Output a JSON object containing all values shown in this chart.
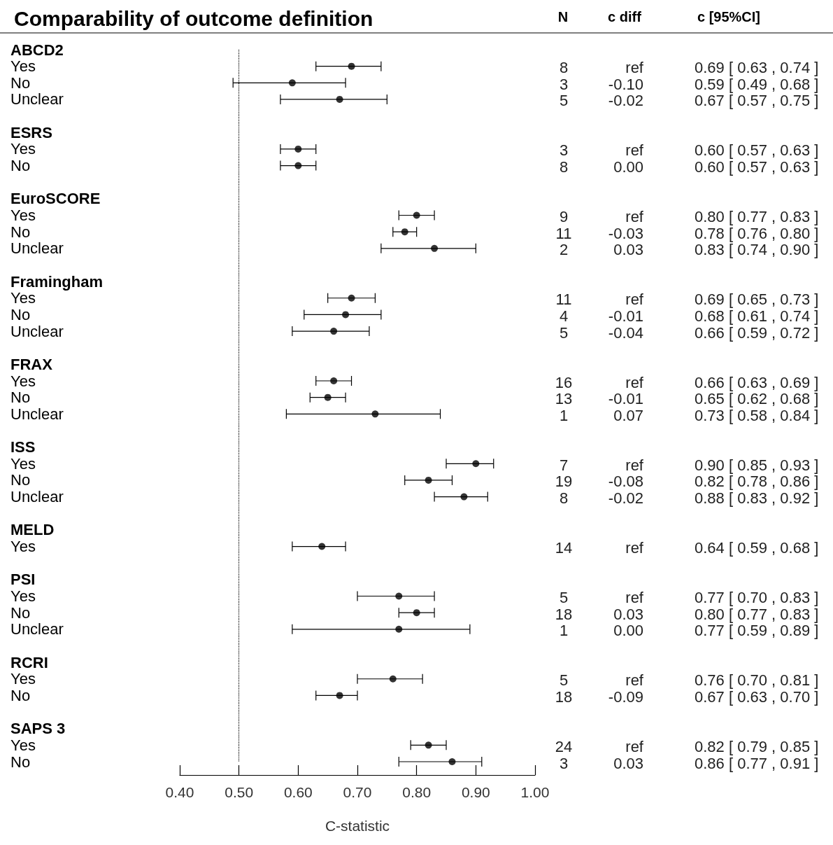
{
  "chart_data": {
    "type": "scatter",
    "orientation": "horizontal",
    "title": "Comparability of outcome definition",
    "xlabel": "C-statistic",
    "categories": [
      "ABCD2",
      "Yes",
      "No",
      "Unclear",
      null,
      "ESRS",
      "Yes",
      "No",
      null,
      "EuroSCORE",
      "Yes",
      "No",
      "Unclear",
      null,
      "Framingham",
      "Yes",
      "No",
      "Unclear",
      null,
      "FRAX",
      "Yes",
      "No",
      "Unclear",
      null,
      "ISS",
      "Yes",
      "No",
      "Unclear",
      null,
      "MELD",
      "Yes",
      null,
      "PSI",
      "Yes",
      "No",
      "Unclear",
      null,
      "RCRI",
      "Yes",
      "No",
      null,
      "SAPS 3",
      "Yes",
      "No"
    ],
    "series": [
      {
        "color": "#000000",
        "values": [
          null,
          0.69,
          0.59,
          0.67,
          null,
          null,
          0.6,
          0.6,
          null,
          null,
          0.8,
          0.78,
          0.83,
          null,
          null,
          0.69,
          0.68,
          0.66,
          null,
          null,
          0.66,
          0.65,
          0.73,
          null,
          null,
          0.9,
          0.82,
          0.88,
          null,
          null,
          0.64,
          null,
          null,
          0.77,
          0.8,
          0.77,
          null,
          null,
          0.76,
          0.67,
          null,
          null,
          0.82,
          0.86
        ],
        "errors": [
          null,
          [
            0.63,
            0.74
          ],
          [
            0.49,
            0.68
          ],
          [
            0.57,
            0.75
          ],
          null,
          null,
          [
            0.57,
            0.63
          ],
          [
            0.57,
            0.63
          ],
          null,
          null,
          [
            0.77,
            0.83
          ],
          [
            0.76,
            0.8
          ],
          [
            0.74,
            0.9
          ],
          null,
          null,
          [
            0.65,
            0.73
          ],
          [
            0.61,
            0.74
          ],
          [
            0.59,
            0.72
          ],
          null,
          null,
          [
            0.63,
            0.69
          ],
          [
            0.62,
            0.68
          ],
          [
            0.58,
            0.84
          ],
          null,
          null,
          [
            0.85,
            0.93
          ],
          [
            0.78,
            0.86
          ],
          [
            0.83,
            0.92
          ],
          null,
          null,
          [
            0.59,
            0.68
          ],
          null,
          null,
          [
            0.7,
            0.83
          ],
          [
            0.77,
            0.83
          ],
          [
            0.59,
            0.89
          ],
          null,
          null,
          [
            0.7,
            0.81
          ],
          [
            0.63,
            0.7
          ],
          null,
          null,
          [
            0.79,
            0.85
          ],
          [
            0.77,
            0.91
          ]
        ],
        "value_labels": [
          null,
          "0.69 [ 0.63 , 0.74 ]",
          "0.59 [ 0.49 , 0.68 ]",
          "0.67 [ 0.57 , 0.75 ]",
          null,
          null,
          "0.60 [ 0.57 , 0.63 ]",
          "0.60 [ 0.57 , 0.63 ]",
          null,
          null,
          "0.80 [ 0.77 , 0.83 ]",
          "0.78 [ 0.76 , 0.80 ]",
          "0.83 [ 0.74 , 0.90 ]",
          null,
          null,
          "0.69 [ 0.65 , 0.73 ]",
          "0.68 [ 0.61 , 0.74 ]",
          "0.66 [ 0.59 , 0.72 ]",
          null,
          null,
          "0.66 [ 0.63 , 0.69 ]",
          "0.65 [ 0.62 , 0.68 ]",
          "0.73 [ 0.58 , 0.84 ]",
          null,
          null,
          "0.90 [ 0.85 , 0.93 ]",
          "0.82 [ 0.78 , 0.86 ]",
          "0.88 [ 0.83 , 0.92 ]",
          null,
          null,
          "0.64 [ 0.59 , 0.68 ]",
          null,
          null,
          "0.77 [ 0.70 , 0.83 ]",
          "0.80 [ 0.77 , 0.83 ]",
          "0.77 [ 0.59 , 0.89 ]",
          null,
          null,
          "0.76 [ 0.70 , 0.81 ]",
          "0.67 [ 0.63 , 0.70 ]",
          null,
          null,
          "0.82 [ 0.79 , 0.85 ]",
          "0.86 [ 0.77 , 0.91 ]"
        ]
      }
    ],
    "annotations": [
      "N",
      "c diff",
      "c [95%CI]",
      "8",
      "ref",
      "3",
      "-0.10",
      "5",
      "-0.02",
      "3",
      "ref",
      "8",
      "0.00",
      "9",
      "ref",
      "11",
      "-0.03",
      "2",
      "0.03",
      "11",
      "ref",
      "4",
      "-0.01",
      "5",
      "-0.04",
      "16",
      "ref",
      "13",
      "-0.01",
      "1",
      "0.07",
      "7",
      "ref",
      "19",
      "-0.08",
      "8",
      "-0.02",
      "14",
      "ref",
      "5",
      "ref",
      "18",
      "0.03",
      "1",
      "0.00",
      "5",
      "ref",
      "18",
      "-0.09",
      "24",
      "ref",
      "3",
      "0.03"
    ],
    "xlim": [
      0.4,
      1.0
    ],
    "xticks": [
      {
        "value": 0.4,
        "label": "0.40"
      },
      {
        "value": 0.5,
        "label": "0.50"
      },
      {
        "value": 0.6,
        "label": "0.60"
      },
      {
        "value": 0.7,
        "label": "0.70"
      },
      {
        "value": 0.8,
        "label": "0.80"
      },
      {
        "value": 0.9,
        "label": "0.90"
      },
      {
        "value": 1.0,
        "label": "1.00"
      }
    ],
    "ref_lines": [
      {
        "axis": "x",
        "value": 0.5,
        "line_style": "dotted",
        "color": "#000000"
      }
    ],
    "marker": "circle",
    "grid": false
  }
}
